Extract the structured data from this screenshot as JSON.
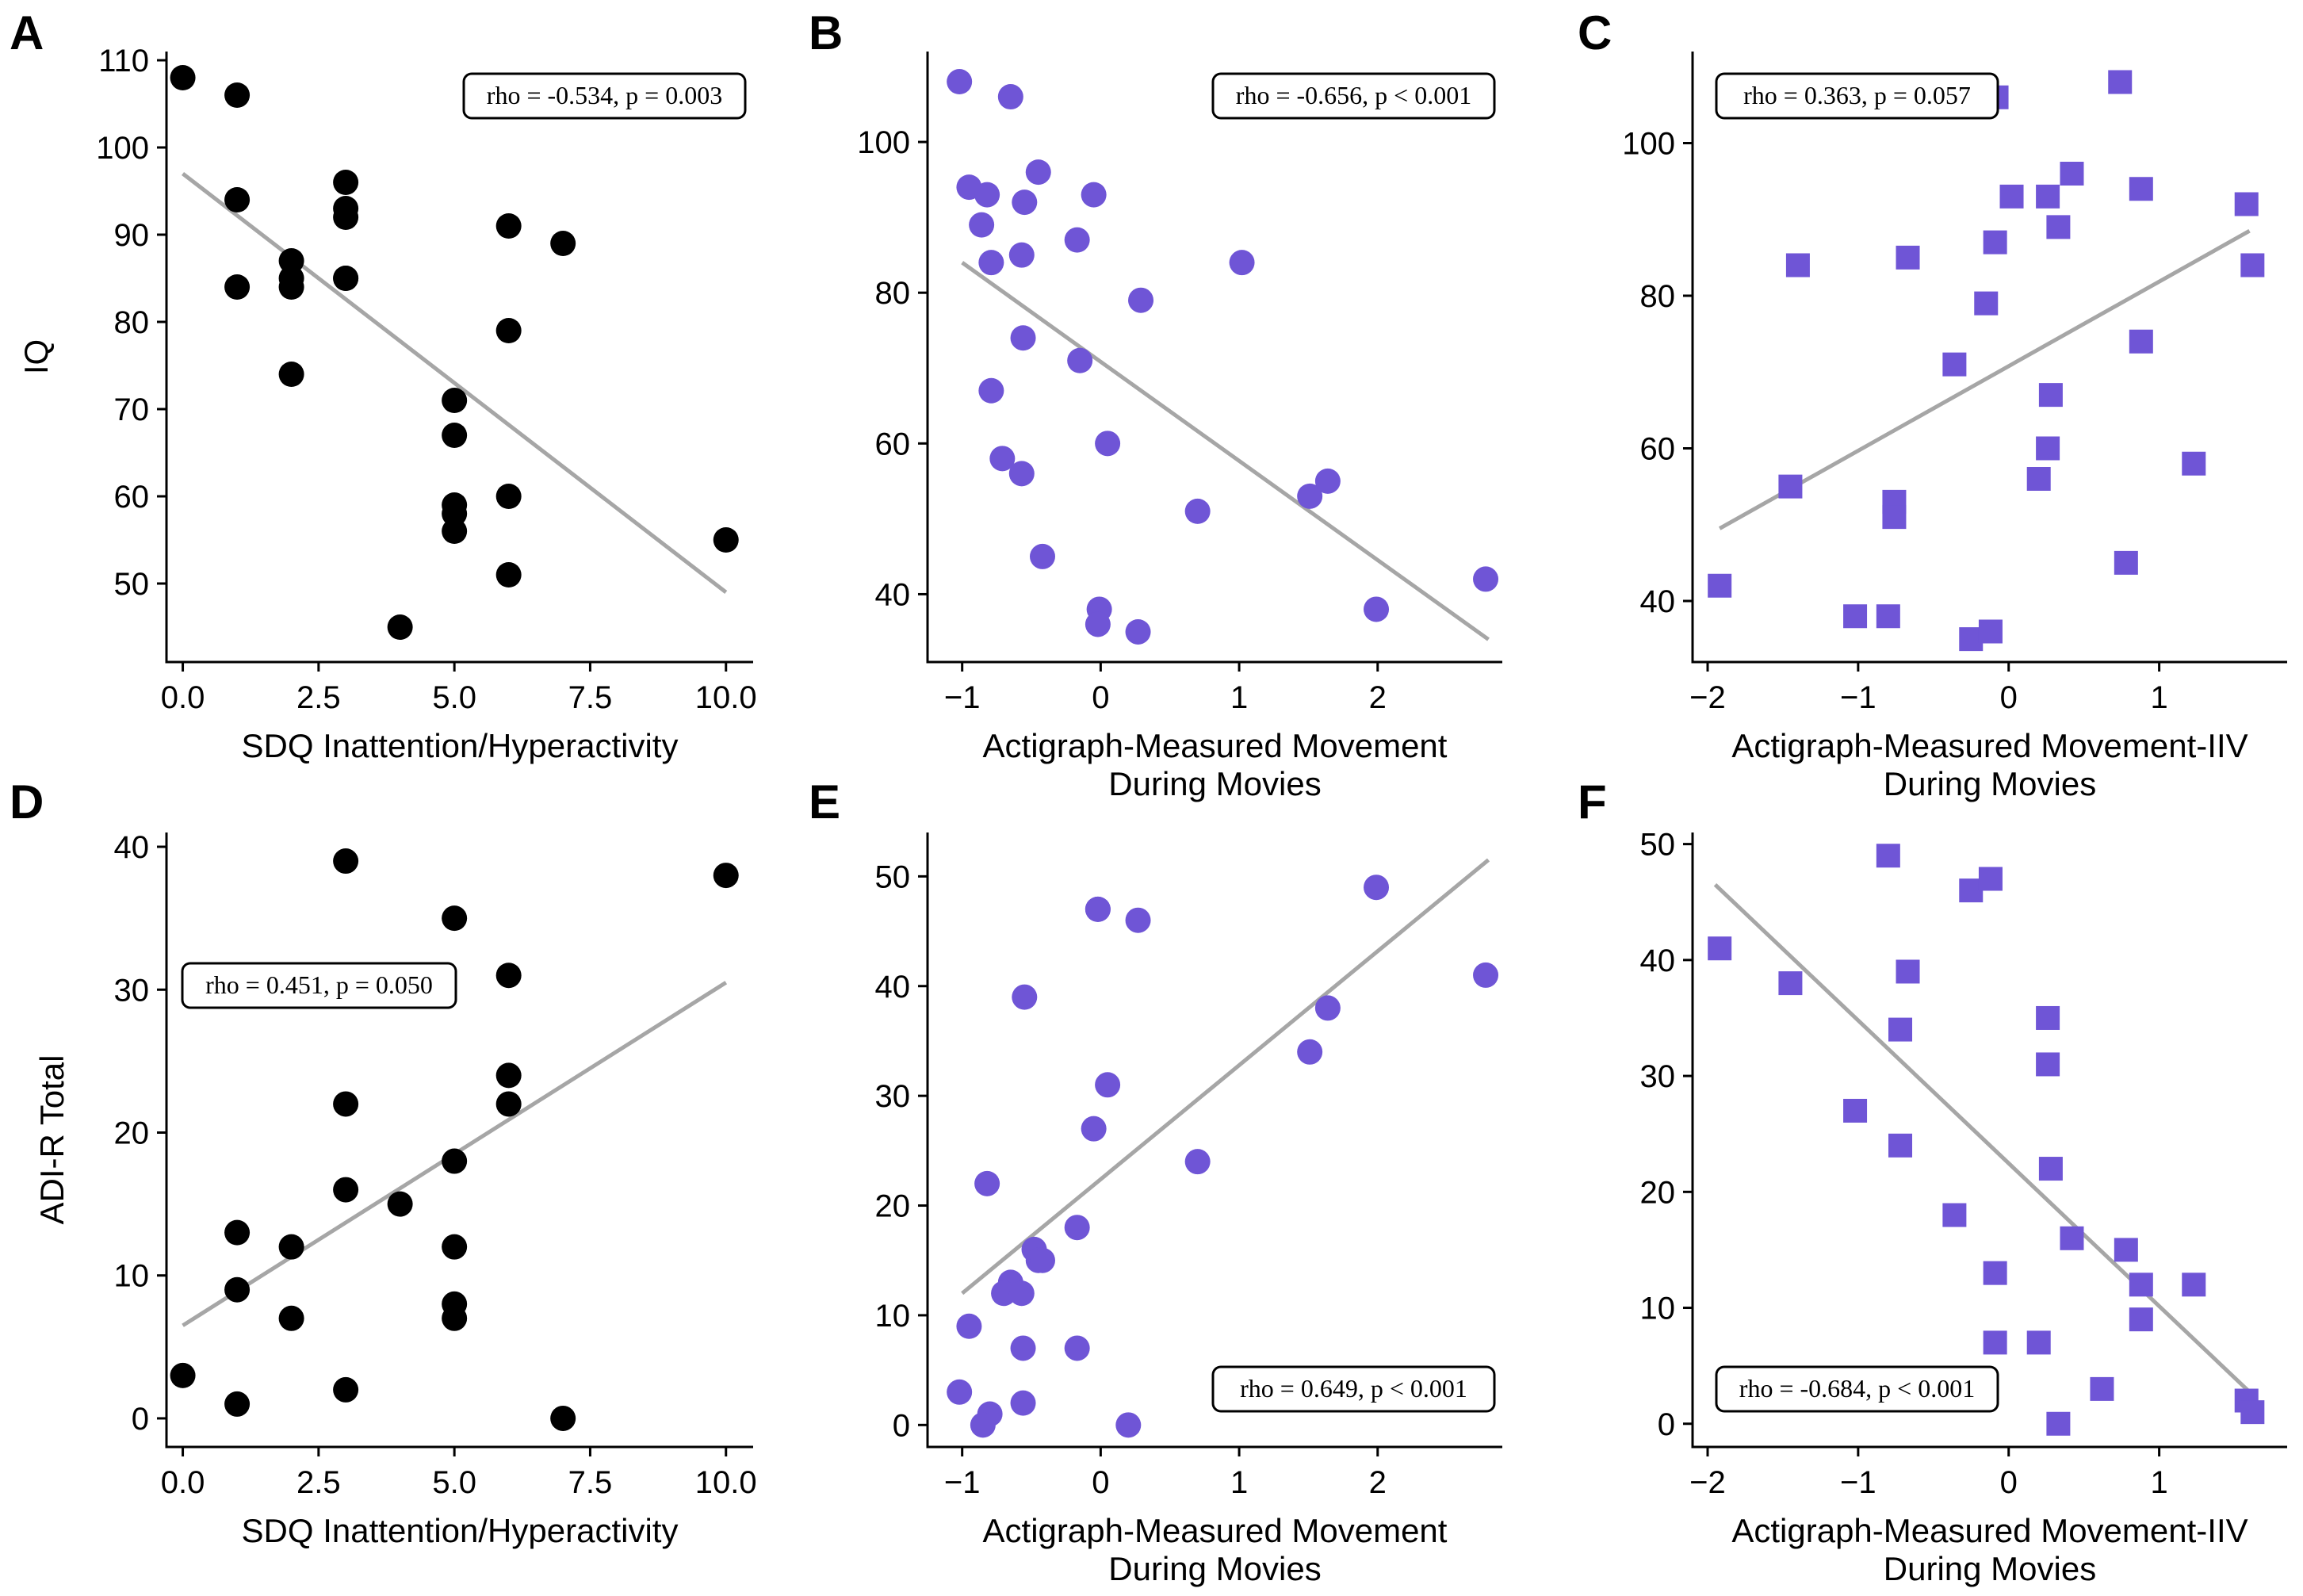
{
  "figure": {
    "colors": {
      "black_marker": "#000000",
      "purple_marker": "#6f55d6",
      "fit_line": "#a6a6a6"
    }
  },
  "chart_data": [
    {
      "id": "A",
      "type": "scatter",
      "panel_label": "A",
      "marker": "circle",
      "color": "#000000",
      "xlabel": [
        "SDQ Inattention/Hyperactivity"
      ],
      "ylabel": "IQ",
      "xlim": [
        -0.3,
        10.5
      ],
      "ylim": [
        41,
        111
      ],
      "xticks": [
        0,
        2.5,
        5,
        7.5,
        10
      ],
      "xtick_labels": [
        "0.0",
        "2.5",
        "5.0",
        "7.5",
        "10.0"
      ],
      "yticks": [
        50,
        60,
        70,
        80,
        90,
        100,
        110
      ],
      "ytick_labels": [
        "50",
        "60",
        "70",
        "80",
        "90",
        "100",
        "110"
      ],
      "annotation": "rho = -0.534, p = 0.003",
      "annotation_position": "top-right",
      "fit": {
        "x": [
          0,
          10
        ],
        "y": [
          97,
          49
        ]
      },
      "x": [
        0,
        1,
        1,
        1,
        2,
        2,
        2,
        2,
        3,
        3,
        3,
        3,
        3,
        4,
        5,
        5,
        5,
        5,
        5,
        6,
        6,
        6,
        6,
        7,
        10
      ],
      "y": [
        108,
        106,
        94,
        84,
        87,
        85,
        84,
        74,
        96,
        93,
        92,
        85,
        85,
        45,
        71,
        67,
        59,
        58,
        56,
        91,
        79,
        60,
        51,
        89,
        55
      ]
    },
    {
      "id": "B",
      "type": "scatter",
      "panel_label": "B",
      "marker": "circle",
      "color": "#6f55d6",
      "xlabel": [
        "Actigraph-Measured Movement",
        "During Movies"
      ],
      "ylabel": "",
      "xlim": [
        -1.25,
        2.9
      ],
      "ylim": [
        31,
        112
      ],
      "xticks": [
        -1,
        0,
        1,
        2
      ],
      "xtick_labels": [
        "−1",
        "0",
        "1",
        "2"
      ],
      "yticks": [
        40,
        60,
        80,
        100
      ],
      "ytick_labels": [
        "40",
        "60",
        "80",
        "100"
      ],
      "annotation": "rho = -0.656, p < 0.001",
      "annotation_position": "top-right",
      "fit": {
        "x": [
          -1.0,
          2.8
        ],
        "y": [
          84,
          34
        ]
      },
      "x": [
        -1.02,
        -0.65,
        -0.95,
        -0.82,
        -0.86,
        -0.55,
        -0.45,
        -0.05,
        -0.17,
        -0.79,
        -0.57,
        -0.56,
        -0.15,
        1.02,
        0.29,
        -0.79,
        -0.71,
        -0.57,
        0.05,
        0.7,
        1.51,
        1.64,
        -0.42,
        2.78,
        1.99,
        -0.01,
        -0.02,
        0.27
      ],
      "y": [
        108,
        106,
        94,
        93,
        89,
        92,
        96,
        93,
        87,
        84,
        85,
        74,
        71,
        84,
        79,
        67,
        58,
        56,
        60,
        51,
        53,
        55,
        45,
        42,
        38,
        38,
        36,
        35
      ]
    },
    {
      "id": "C",
      "type": "scatter",
      "panel_label": "C",
      "marker": "square",
      "color": "#6f55d6",
      "xlabel": [
        "Actigraph-Measured Movement-IIV",
        "During Movies"
      ],
      "ylabel": "",
      "xlim": [
        -2.1,
        1.85
      ],
      "ylim": [
        32,
        112
      ],
      "xticks": [
        -2,
        -1,
        0,
        1
      ],
      "xtick_labels": [
        "−2",
        "−1",
        "0",
        "1"
      ],
      "yticks": [
        40,
        60,
        80,
        100
      ],
      "ytick_labels": [
        "40",
        "60",
        "80",
        "100"
      ],
      "annotation": "rho = 0.363, p = 0.057",
      "annotation_position": "top-left",
      "fit": {
        "x": [
          -1.92,
          1.6
        ],
        "y": [
          49.5,
          88.5
        ]
      },
      "x": [
        -0.08,
        0.74,
        0.88,
        1.58,
        1.62,
        -1.92,
        -1.45,
        -1.4,
        -1.02,
        -0.8,
        -0.76,
        -0.76,
        -0.67,
        -0.36,
        -0.25,
        -0.15,
        -0.12,
        -0.09,
        0.02,
        0.2,
        0.26,
        0.26,
        0.28,
        0.33,
        0.42,
        0.78,
        0.88,
        1.23
      ],
      "y": [
        106,
        108,
        94,
        92,
        84,
        42,
        55,
        84,
        38,
        38,
        53,
        51,
        85,
        71,
        35,
        79,
        36,
        87,
        93,
        56,
        93,
        60,
        67,
        89,
        96,
        45,
        74,
        58
      ]
    },
    {
      "id": "D",
      "type": "scatter",
      "panel_label": "D",
      "marker": "circle",
      "color": "#000000",
      "xlabel": [
        "SDQ Inattention/Hyperactivity"
      ],
      "ylabel": "ADI-R Total",
      "xlim": [
        -0.3,
        10.5
      ],
      "ylim": [
        -2,
        41
      ],
      "xticks": [
        0,
        2.5,
        5,
        7.5,
        10
      ],
      "xtick_labels": [
        "0.0",
        "2.5",
        "5.0",
        "7.5",
        "10.0"
      ],
      "yticks": [
        0,
        10,
        20,
        30,
        40
      ],
      "ytick_labels": [
        "0",
        "10",
        "20",
        "30",
        "40"
      ],
      "annotation": "rho = 0.451, p = 0.050",
      "annotation_position": "top-left",
      "fit": {
        "x": [
          0,
          10
        ],
        "y": [
          6.5,
          30.5
        ]
      },
      "x": [
        0,
        1,
        1,
        1,
        2,
        2,
        3,
        3,
        3,
        4,
        5,
        5,
        5,
        5,
        5,
        6,
        6,
        6,
        7,
        10,
        3
      ],
      "y": [
        3,
        1,
        9,
        13,
        7,
        12,
        2,
        16,
        22,
        15,
        7,
        8,
        12,
        18,
        35,
        22,
        24,
        31,
        0,
        38,
        39
      ]
    },
    {
      "id": "E",
      "type": "scatter",
      "panel_label": "E",
      "marker": "circle",
      "color": "#6f55d6",
      "xlabel": [
        "Actigraph-Measured Movement",
        "During Movies"
      ],
      "ylabel": "",
      "xlim": [
        -1.25,
        2.9
      ],
      "ylim": [
        -2,
        54
      ],
      "xticks": [
        -1,
        0,
        1,
        2
      ],
      "xtick_labels": [
        "−1",
        "0",
        "1",
        "2"
      ],
      "yticks": [
        0,
        10,
        20,
        30,
        40,
        50
      ],
      "ytick_labels": [
        "0",
        "10",
        "20",
        "30",
        "40",
        "50"
      ],
      "annotation": "rho = 0.649, p < 0.001",
      "annotation_position": "bottom-right",
      "fit": {
        "x": [
          -1.0,
          2.8
        ],
        "y": [
          12,
          51.5
        ]
      },
      "x": [
        -1.02,
        -0.95,
        -0.8,
        -0.85,
        -0.82,
        -0.65,
        -0.7,
        -0.57,
        -0.56,
        -0.56,
        -0.55,
        -0.48,
        -0.45,
        -0.42,
        -0.17,
        -0.17,
        -0.05,
        -0.02,
        0.05,
        0.27,
        0.7,
        1.51,
        1.64,
        1.99,
        2.78,
        -0.02,
        0.2
      ],
      "y": [
        3,
        9,
        1,
        0,
        22,
        13,
        12,
        12,
        7,
        2,
        39,
        16,
        15,
        15,
        18,
        7,
        27,
        47,
        31,
        46,
        24,
        34,
        38,
        49,
        41,
        47,
        0
      ],
      "note_hidden_last": true
    },
    {
      "id": "F",
      "type": "scatter",
      "panel_label": "F",
      "marker": "square",
      "color": "#6f55d6",
      "xlabel": [
        "Actigraph-Measured Movement-IIV",
        "During Movies"
      ],
      "ylabel": "",
      "xlim": [
        -2.1,
        1.85
      ],
      "ylim": [
        -2,
        51
      ],
      "xticks": [
        -2,
        -1,
        0,
        1
      ],
      "xtick_labels": [
        "−2",
        "−1",
        "0",
        "1"
      ],
      "yticks": [
        0,
        10,
        20,
        30,
        40,
        50
      ],
      "ytick_labels": [
        "0",
        "10",
        "20",
        "30",
        "40",
        "50"
      ],
      "annotation": "rho = -0.684, p < 0.001",
      "annotation_position": "bottom-left",
      "fit": {
        "x": [
          -1.95,
          1.62
        ],
        "y": [
          46.5,
          2.5
        ]
      },
      "x": [
        -1.92,
        -1.45,
        -1.02,
        -0.8,
        -0.72,
        -0.72,
        -0.67,
        -0.36,
        -0.25,
        -0.12,
        -0.09,
        -0.09,
        0.2,
        0.26,
        0.26,
        0.28,
        0.33,
        0.42,
        0.62,
        0.78,
        0.88,
        0.88,
        1.23,
        1.58,
        1.62
      ],
      "y": [
        41,
        38,
        27,
        49,
        34,
        24,
        39,
        18,
        46,
        47,
        13,
        7,
        7,
        35,
        31,
        22,
        0,
        16,
        3,
        15,
        12,
        9,
        12,
        2,
        1
      ]
    }
  ]
}
